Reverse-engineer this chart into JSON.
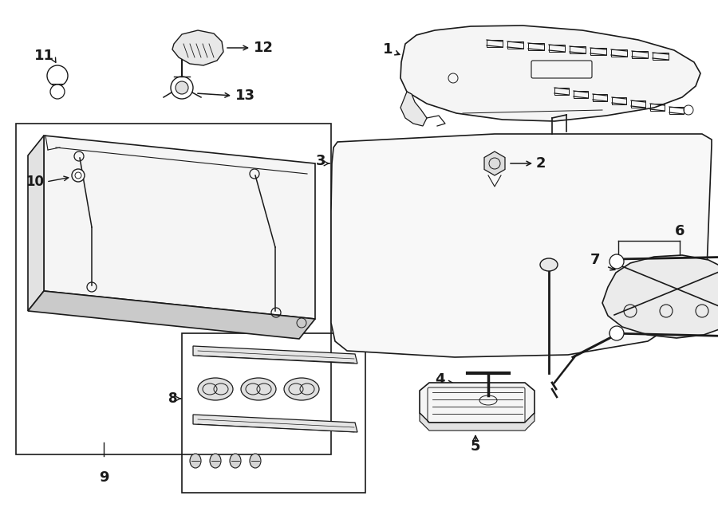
{
  "bg_color": "#ffffff",
  "lc": "#1a1a1a",
  "lw": 1.2,
  "fw": 9.0,
  "fh": 6.61,
  "dpi": 100,
  "pf": "#f5f5f5",
  "ps": "#e2e2e2",
  "pd": "#cacaca"
}
